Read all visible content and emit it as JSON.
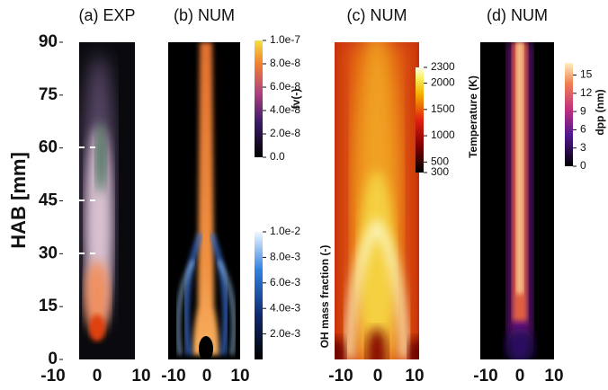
{
  "y_axis": {
    "label": "HAB [mm]",
    "ylim": [
      0,
      90
    ],
    "ticks": [
      0,
      15,
      30,
      45,
      60,
      75,
      90
    ]
  },
  "panels": [
    {
      "title": "(a) EXP",
      "xticks": [
        -10,
        0,
        10
      ]
    },
    {
      "title": "(b) NUM",
      "xticks": [
        -10,
        0,
        10
      ]
    },
    {
      "title": "(c) NUM",
      "xticks": [
        -10,
        0,
        10
      ]
    },
    {
      "title": "(d) NUM",
      "xticks": [
        -10,
        0,
        10
      ]
    }
  ],
  "colorbars": [
    {
      "label": "fv(-)",
      "lim": [
        0,
        1e-07
      ],
      "ticks": [
        {
          "value": 0,
          "label": "0.0"
        },
        {
          "value": 2e-08,
          "label": "2.0e-8"
        },
        {
          "value": 4e-08,
          "label": "4.0e-8"
        },
        {
          "value": 6e-08,
          "label": "6.0e-8"
        },
        {
          "value": 8e-08,
          "label": "8.0e-8"
        },
        {
          "value": 1e-07,
          "label": "1.0e-7"
        }
      ]
    },
    {
      "label": "OH mass fraction (-)",
      "lim": [
        0,
        0.01
      ],
      "ticks": [
        {
          "value": 0.002,
          "label": "2.0e-3"
        },
        {
          "value": 0.004,
          "label": "4.0e-3"
        },
        {
          "value": 0.006,
          "label": "6.0e-3"
        },
        {
          "value": 0.008,
          "label": "8.0e-3"
        },
        {
          "value": 0.01,
          "label": "1.0e-2"
        }
      ]
    },
    {
      "label": "Temperature (K)",
      "lim": [
        300,
        2300
      ],
      "ticks": [
        300,
        500,
        1000,
        1500,
        2000,
        2300
      ]
    },
    {
      "label": "dpp (nm)",
      "lim": [
        0,
        17
      ],
      "ticks": [
        0,
        3,
        6,
        9,
        12,
        15
      ]
    }
  ]
}
